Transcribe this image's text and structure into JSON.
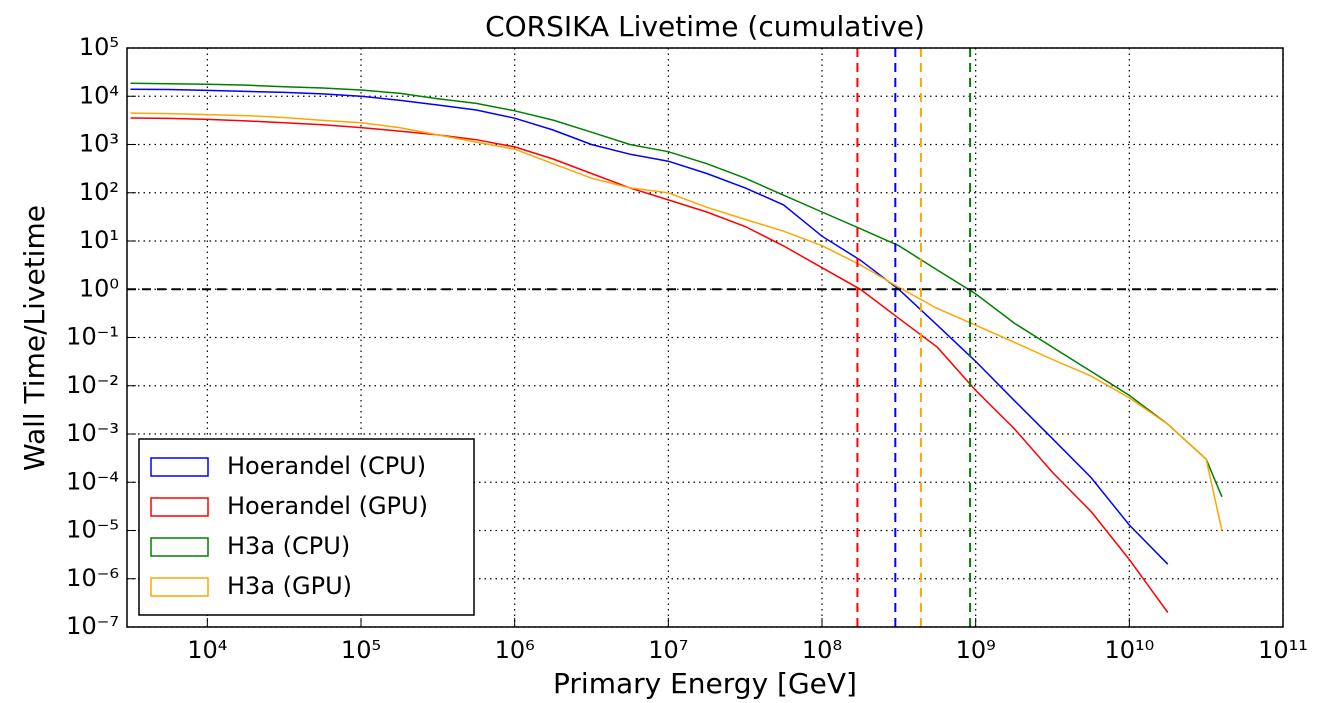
{
  "chart_data": {
    "type": "line",
    "title": "CORSIKA Livetime (cumulative)",
    "xlabel": "Primary Energy [GeV]",
    "ylabel": "Wall Time/Livetime",
    "xscale": "log",
    "yscale": "log",
    "grid": true,
    "legend": "lower left",
    "xlim": [
      3000,
      100000000000
    ],
    "ylim": [
      1e-07,
      100000
    ],
    "xticks": [
      {
        "value": 10000,
        "label": "10⁴"
      },
      {
        "value": 100000,
        "label": "10⁵"
      },
      {
        "value": 1000000,
        "label": "10⁶"
      },
      {
        "value": 10000000,
        "label": "10⁷"
      },
      {
        "value": 100000000,
        "label": "10⁸"
      },
      {
        "value": 1000000000,
        "label": "10⁹"
      },
      {
        "value": 10000000000,
        "label": "10¹⁰"
      },
      {
        "value": 100000000000,
        "label": "10¹¹"
      }
    ],
    "yticks": [
      {
        "value": 1e-07,
        "label": "10⁻⁷"
      },
      {
        "value": 1e-06,
        "label": "10⁻⁶"
      },
      {
        "value": 1e-05,
        "label": "10⁻⁵"
      },
      {
        "value": 0.0001,
        "label": "10⁻⁴"
      },
      {
        "value": 0.001,
        "label": "10⁻³"
      },
      {
        "value": 0.01,
        "label": "10⁻²"
      },
      {
        "value": 0.1,
        "label": "10⁻¹"
      },
      {
        "value": 1,
        "label": "10⁰"
      },
      {
        "value": 10,
        "label": "10¹"
      },
      {
        "value": 100,
        "label": "10²"
      },
      {
        "value": 1000,
        "label": "10³"
      },
      {
        "value": 10000,
        "label": "10⁴"
      },
      {
        "value": 100000,
        "label": "10⁵"
      }
    ],
    "x": [
      3162,
      5623,
      10000,
      17783,
      31623,
      56234,
      100000,
      177828,
      316228,
      562341,
      1000000,
      1778279,
      3162278,
      5623413,
      10000000,
      17782794,
      31622777,
      56234133,
      100000000,
      177827941,
      316227766,
      562341325,
      1000000000,
      1778279410,
      3162277660,
      5623413252,
      10000000000,
      17782794100,
      31622776602,
      40000000000
    ],
    "series": [
      {
        "name": "Hoerandel (CPU)",
        "color": "#0000ff",
        "values": [
          14000,
          13800,
          13200,
          12600,
          12000,
          11200,
          10000,
          8300,
          6600,
          5200,
          3500,
          2000,
          1000,
          630,
          450,
          250,
          126,
          56,
          12.6,
          4,
          1,
          0.18,
          0.032,
          0.005,
          0.0008,
          0.000126,
          1.3e-05,
          2e-06,
          null,
          null
        ]
      },
      {
        "name": "Hoerandel (GPU)",
        "color": "#ff0000",
        "values": [
          3550,
          3470,
          3310,
          3090,
          2820,
          2570,
          2240,
          1900,
          1580,
          1260,
          890,
          500,
          250,
          126,
          71,
          40,
          20,
          7.9,
          2.8,
          1,
          0.25,
          0.063,
          0.008,
          0.0013,
          0.00016,
          2.5e-05,
          2.5e-06,
          2e-07,
          null,
          null
        ]
      },
      {
        "name": "H3a (CPU)",
        "color": "#008000",
        "values": [
          18600,
          18200,
          17800,
          17000,
          15800,
          14800,
          13500,
          11500,
          8900,
          7100,
          5000,
          3200,
          1800,
          1000,
          710,
          400,
          200,
          89,
          40,
          18,
          8,
          2.5,
          0.8,
          0.2,
          0.063,
          0.02,
          0.0063,
          0.0016,
          0.0003,
          5e-05
        ]
      },
      {
        "name": "H3a (GPU)",
        "color": "#ffa500",
        "values": [
          4470,
          4370,
          4170,
          3980,
          3630,
          3160,
          2820,
          2240,
          1580,
          1120,
          800,
          400,
          200,
          126,
          100,
          50,
          28,
          16,
          8,
          3.2,
          1.1,
          0.4,
          0.18,
          0.08,
          0.035,
          0.016,
          0.0056,
          0.0016,
          0.0003,
          1e-05
        ]
      }
    ],
    "vlines": [
      {
        "x": 170000000,
        "color": "#ff0000"
      },
      {
        "x": 300000000,
        "color": "#0000ff"
      },
      {
        "x": 440000000,
        "color": "#ffa500"
      },
      {
        "x": 920000000,
        "color": "#008000"
      }
    ],
    "hline": {
      "y": 1,
      "color": "#000000"
    }
  }
}
